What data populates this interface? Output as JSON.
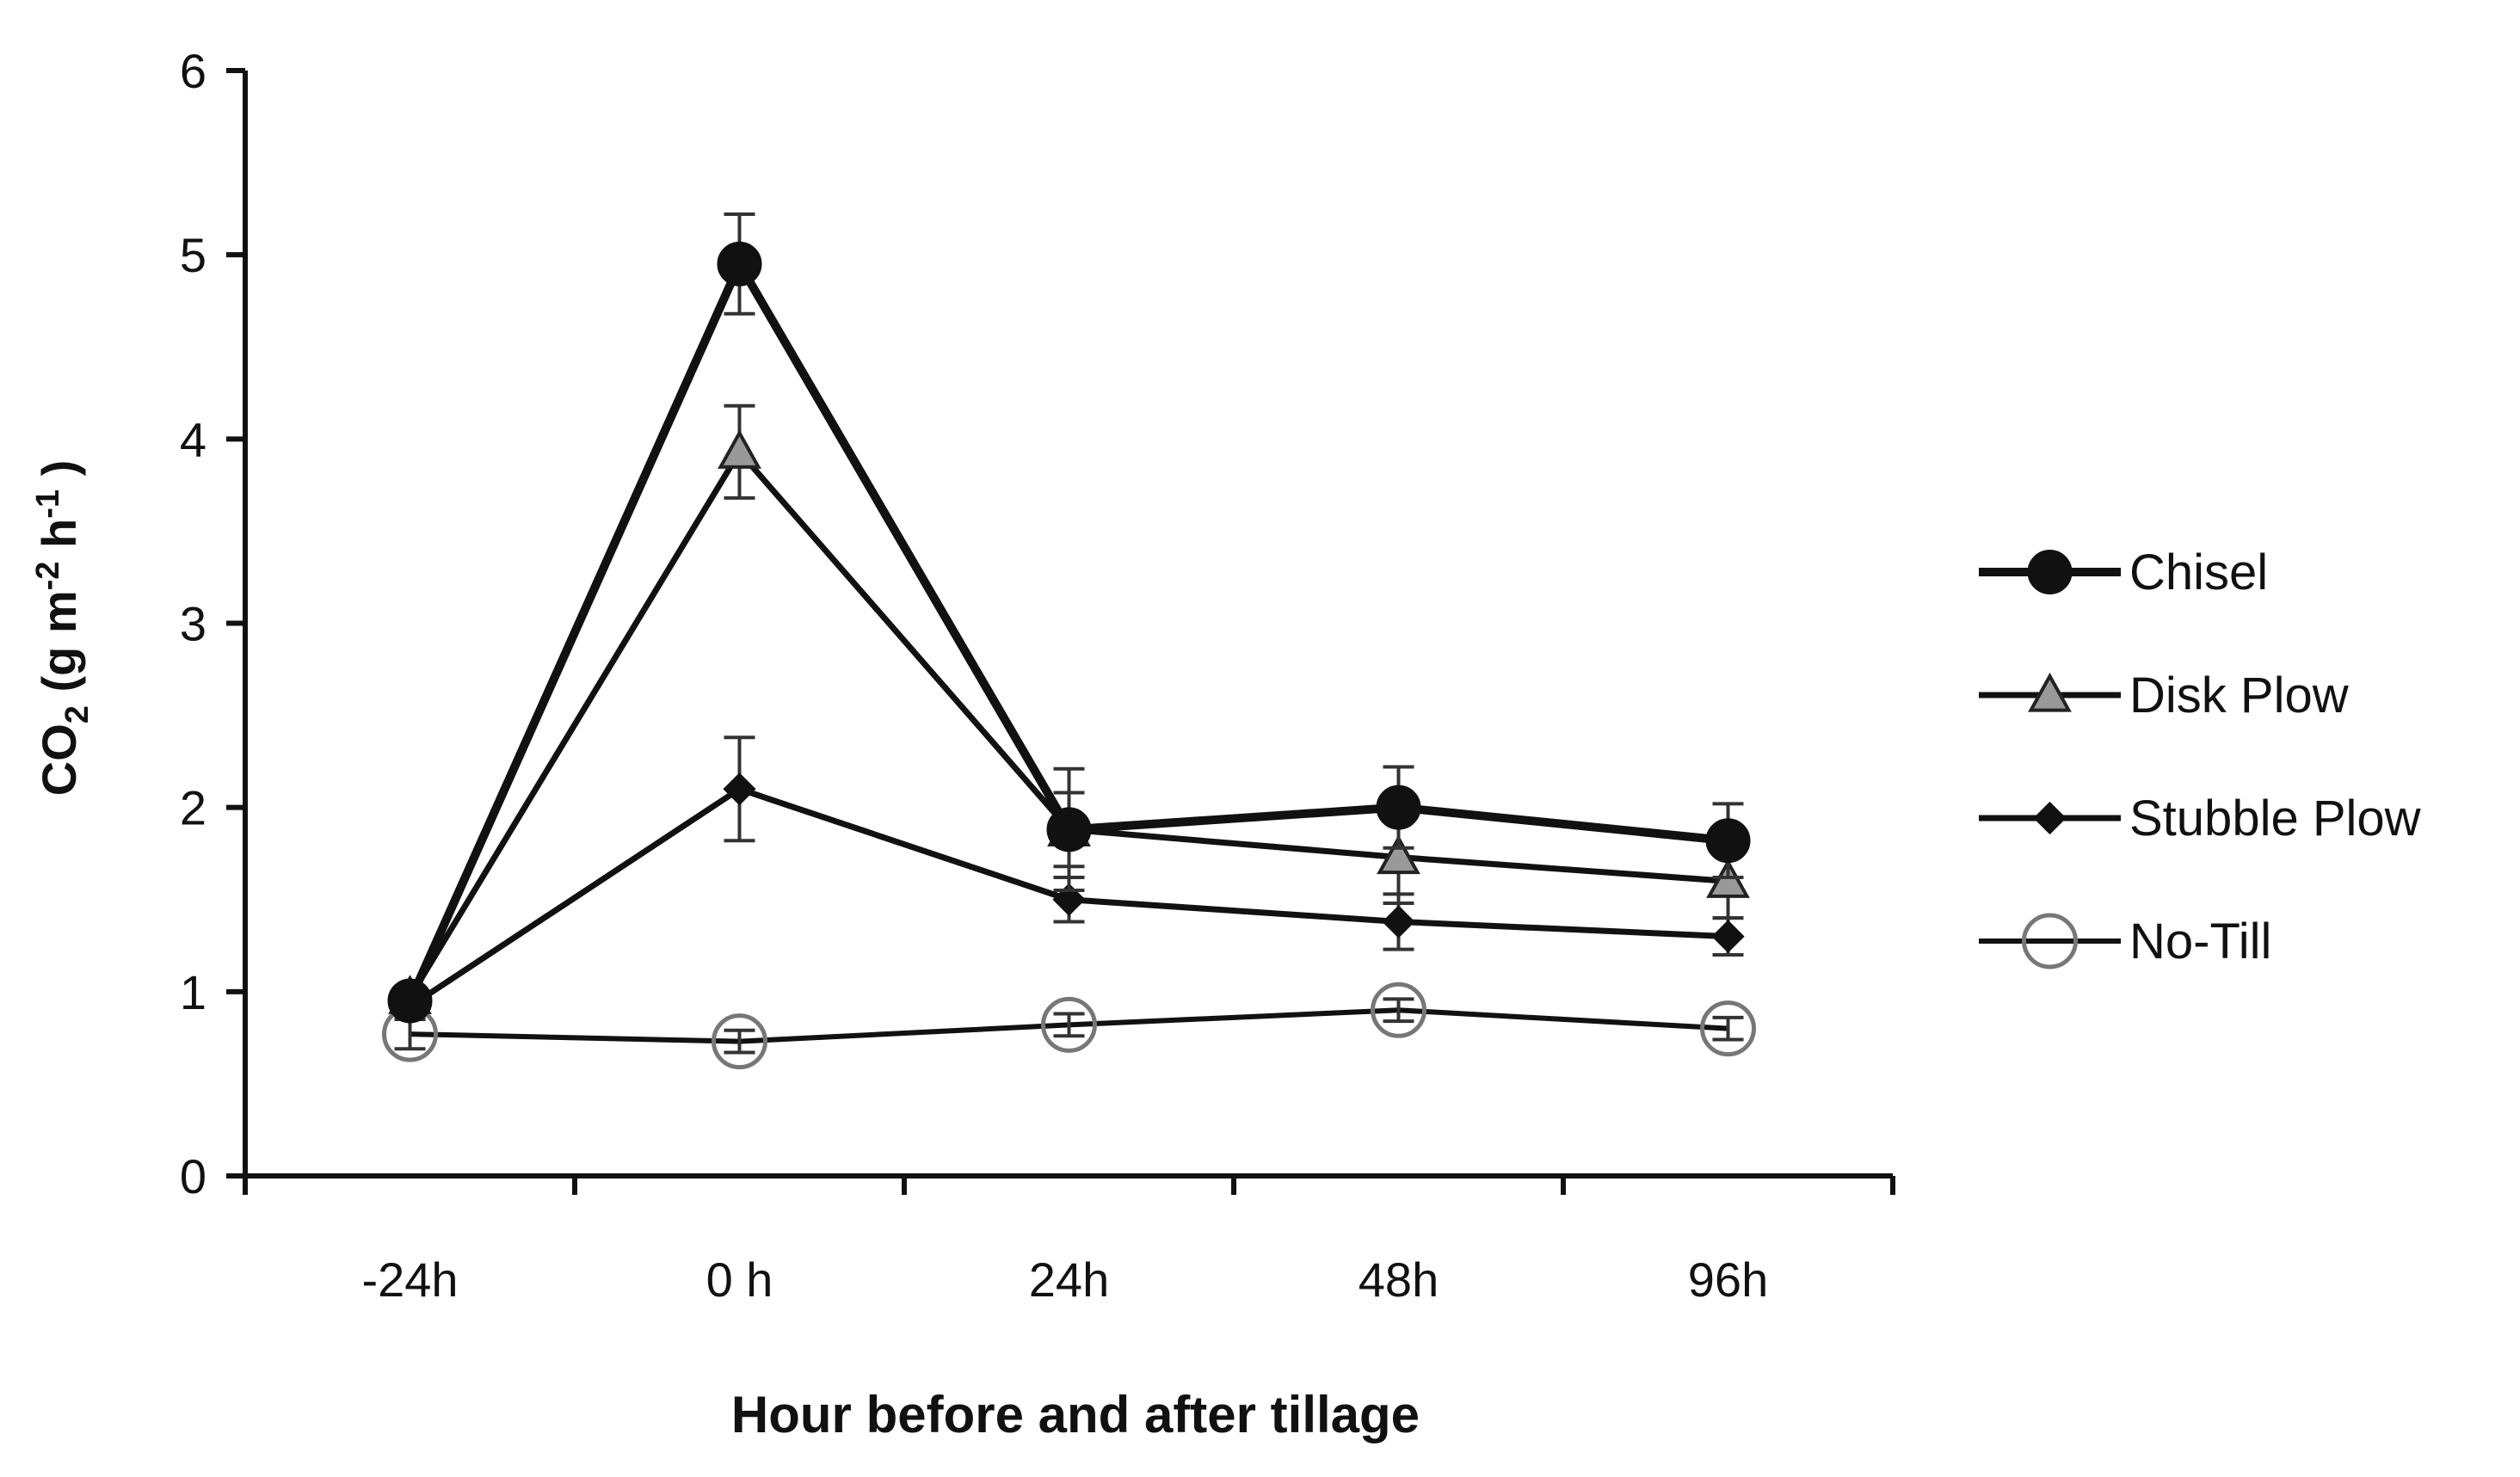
{
  "chart_data": {
    "type": "line",
    "title": "",
    "categories": [
      "-24h",
      "0 h",
      "24h",
      "48h",
      "96h"
    ],
    "xlabel": "Hour before and after tillage",
    "ylabel": {
      "prefix": "CO",
      "co2_sub": "2",
      "open": " (g m",
      "m_sup": "-2",
      "h": " h",
      "h_sup": "-1",
      "close": " )"
    },
    "ylim": [
      0,
      6
    ],
    "yticks": [
      "0",
      "1",
      "2",
      "3",
      "4",
      "5",
      "6"
    ],
    "grid": false,
    "legend_position": "right",
    "series": [
      {
        "name": "Chisel",
        "marker": "filled-circle",
        "values": [
          0.95,
          4.95,
          1.88,
          2.0,
          1.82
        ],
        "errors": [
          0.05,
          0.27,
          0.2,
          0.22,
          0.2
        ]
      },
      {
        "name": "Disk Plow",
        "marker": "triangle",
        "values": [
          0.97,
          3.93,
          1.88,
          1.73,
          1.6
        ],
        "errors": [
          0.05,
          0.25,
          0.33,
          0.25,
          0.2
        ]
      },
      {
        "name": "Stubble Plow",
        "marker": "diamond",
        "values": [
          0.92,
          2.1,
          1.5,
          1.38,
          1.3
        ],
        "errors": [
          0.06,
          0.28,
          0.12,
          0.15,
          0.1
        ]
      },
      {
        "name": "No-Till",
        "marker": "open-circle",
        "values": [
          0.77,
          0.73,
          0.82,
          0.9,
          0.8
        ],
        "errors": [
          0.08,
          0.06,
          0.06,
          0.06,
          0.06
        ]
      }
    ]
  }
}
